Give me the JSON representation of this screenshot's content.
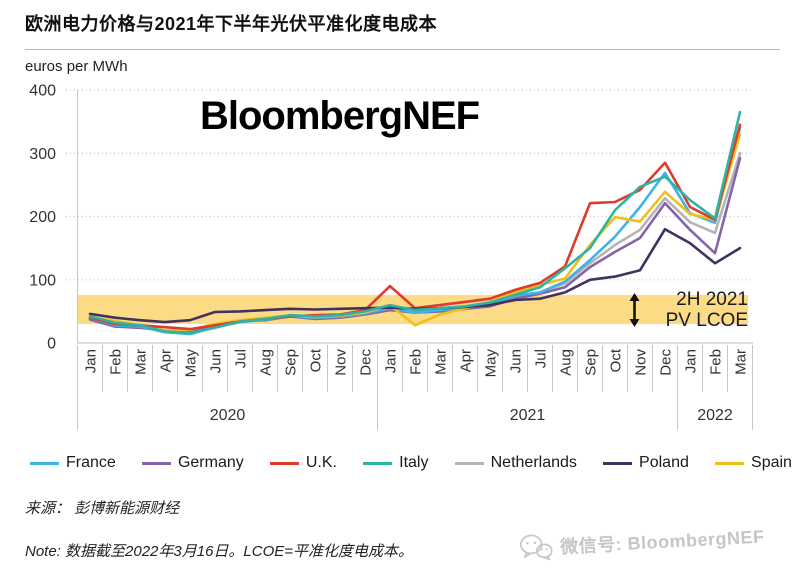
{
  "header": {
    "title": "欧洲电力价格与2021年下半年光伏平准化度电成本"
  },
  "chart": {
    "unit_label": "euros per MWh",
    "watermark_text": "BloombergNEF",
    "annotation": {
      "line1": "2H 2021",
      "line2": "PV LCOE"
    }
  },
  "chart_data": {
    "type": "line",
    "title": "欧洲电力价格与2021年下半年光伏平准化度电成本",
    "ylabel": "euros per MWh",
    "ylim": [
      0,
      400
    ],
    "yticks": [
      0,
      100,
      200,
      300,
      400
    ],
    "grid": "horizontal-dotted",
    "legend_position": "bottom",
    "x": [
      "Jan",
      "Feb",
      "Mar",
      "Apr",
      "May",
      "Jun",
      "Jul",
      "Aug",
      "Sep",
      "Oct",
      "Nov",
      "Dec",
      "Jan",
      "Feb",
      "Mar",
      "Apr",
      "May",
      "Jun",
      "Jul",
      "Aug",
      "Sep",
      "Oct",
      "Nov",
      "Dec",
      "Jan",
      "Feb",
      "Mar"
    ],
    "year_groups": [
      {
        "label": "2020",
        "count": 12
      },
      {
        "label": "2021",
        "count": 12
      },
      {
        "label": "2022",
        "count": 3
      }
    ],
    "band": {
      "name": "2H 2021 PV LCOE",
      "ymin": 30,
      "ymax": 76,
      "color": "#FBDB86"
    },
    "series": [
      {
        "name": "France",
        "color": "#3FB3E4",
        "values": [
          40,
          28,
          26,
          17,
          14,
          25,
          33,
          37,
          42,
          40,
          42,
          47,
          55,
          48,
          52,
          56,
          62,
          75,
          80,
          97,
          131,
          168,
          215,
          269,
          205,
          190,
          340
        ]
      },
      {
        "name": "Germany",
        "color": "#8664AA",
        "values": [
          37,
          26,
          24,
          20,
          18,
          26,
          35,
          36,
          42,
          38,
          40,
          45,
          52,
          48,
          50,
          54,
          58,
          70,
          78,
          88,
          120,
          144,
          166,
          221,
          179,
          142,
          292
        ]
      },
      {
        "name": "U.K.",
        "color": "#DE3B2E",
        "values": [
          40,
          30,
          28,
          25,
          22,
          28,
          34,
          38,
          42,
          44,
          45,
          52,
          90,
          55,
          60,
          65,
          70,
          84,
          95,
          121,
          221,
          223,
          242,
          285,
          215,
          195,
          345
        ]
      },
      {
        "name": "Italy",
        "color": "#2FB3A4",
        "values": [
          42,
          32,
          28,
          18,
          16,
          24,
          34,
          38,
          44,
          42,
          44,
          50,
          60,
          52,
          55,
          58,
          64,
          76,
          88,
          118,
          150,
          210,
          247,
          263,
          226,
          197,
          365
        ]
      },
      {
        "name": "Netherlands",
        "color": "#B4B4B4",
        "values": [
          38,
          28,
          25,
          20,
          17,
          26,
          34,
          36,
          42,
          39,
          41,
          46,
          53,
          49,
          51,
          55,
          60,
          72,
          80,
          94,
          126,
          155,
          179,
          229,
          191,
          174,
          300
        ]
      },
      {
        "name": "Poland",
        "color": "#43315F",
        "values": [
          46,
          40,
          36,
          33,
          36,
          49,
          50,
          52,
          54,
          53,
          54,
          55,
          56,
          54,
          55,
          57,
          60,
          68,
          70,
          80,
          100,
          105,
          115,
          180,
          158,
          126,
          150
        ]
      },
      {
        "name": "Spain",
        "color": "#F0C018",
        "values": [
          41,
          35,
          28,
          20,
          21,
          30,
          36,
          40,
          43,
          41,
          43,
          48,
          60,
          28,
          45,
          55,
          65,
          80,
          92,
          102,
          155,
          199,
          192,
          239,
          204,
          195,
          330
        ]
      }
    ]
  },
  "footer": {
    "source": "来源： 彭博新能源财经",
    "note": "Note: 数据截至2022年3月16日。LCOE=平准化度电成本。",
    "wechat_label": "微信号: BloombergNEF"
  }
}
